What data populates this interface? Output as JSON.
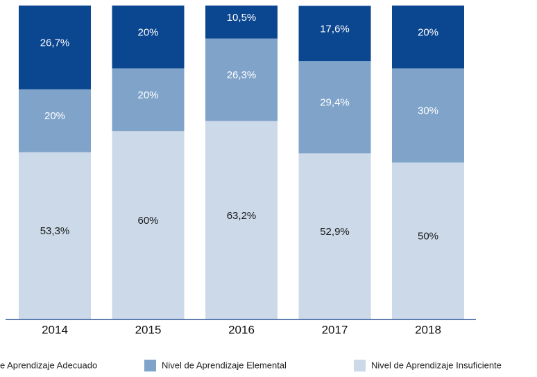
{
  "chart_data": {
    "type": "stacked_bar",
    "categories": [
      "2014",
      "2015",
      "2016",
      "2017",
      "2018"
    ],
    "series": [
      {
        "name": "e Aprendizaje Adecuado",
        "color": "#0b4690",
        "values": [
          26.7,
          20,
          10.5,
          17.6,
          20
        ],
        "value_labels": [
          "26,7%",
          "20%",
          "10,5%",
          "17,6%",
          "20%"
        ]
      },
      {
        "name": "Nivel de Aprendizaje Elemental",
        "color": "#7fa3c9",
        "values": [
          20,
          20,
          26.3,
          29.4,
          30
        ],
        "value_labels": [
          "20%",
          "20%",
          "26,3%",
          "29,4%",
          "30%"
        ]
      },
      {
        "name": "Nivel de Aprendizaje Insuficiente",
        "color": "#cbd9e8",
        "values": [
          53.3,
          60,
          63.2,
          52.9,
          50
        ],
        "value_labels": [
          "53,3%",
          "60%",
          "63,2%",
          "52,9%",
          "50%"
        ]
      }
    ],
    "ylim": [
      0,
      100
    ]
  }
}
